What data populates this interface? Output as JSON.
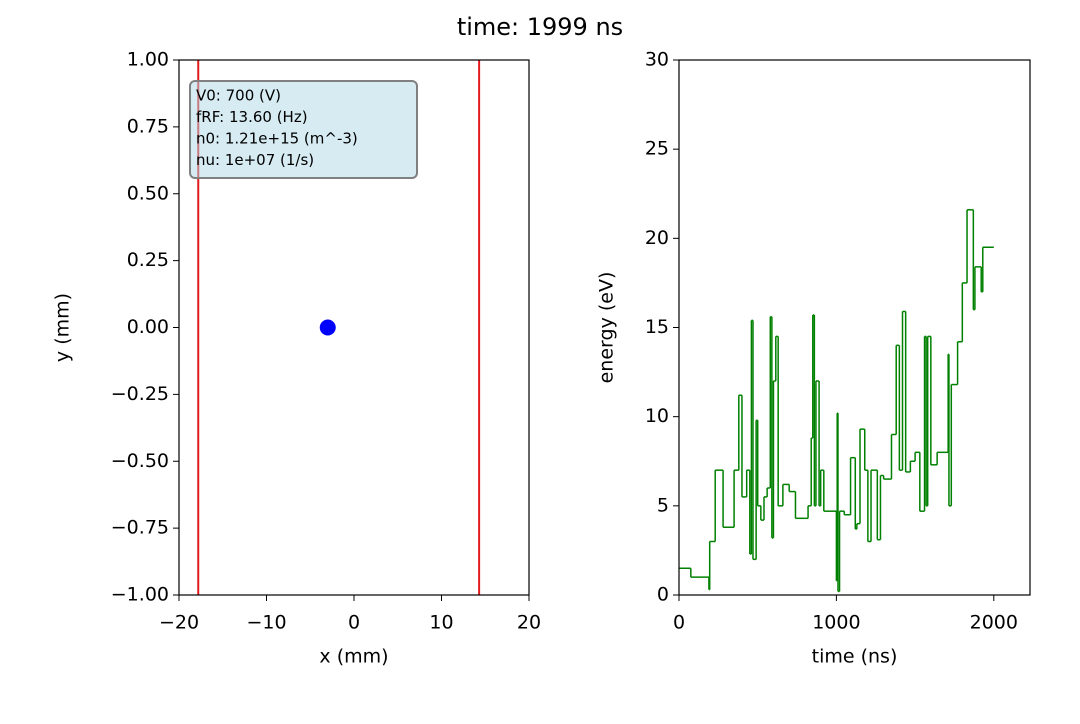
{
  "title": "time: 1999 ns",
  "chart_data": [
    {
      "type": "scatter",
      "x_label": "x (mm)",
      "y_label": "y (mm)",
      "x": [
        -3
      ],
      "y": [
        0
      ],
      "color": "#0000ff",
      "vlines": {
        "x": [
          -17.8,
          14.3
        ],
        "color": "#e31a1c"
      },
      "annotation": [
        "V0: 700 (V)",
        "fRF: 13.60 (Hz)",
        "n0: 1.21e+15 (m^-3)",
        "nu: 1e+07 (1/s)"
      ],
      "xlim": [
        -20,
        20
      ],
      "xticks": [
        {
          "value": -20,
          "label": "−20"
        },
        {
          "value": -10,
          "label": "−10"
        },
        0,
        10,
        20
      ],
      "ylim": [
        -1,
        1
      ],
      "yticks": [
        {
          "value": -1,
          "label": "−1.00"
        },
        {
          "value": -0.75,
          "label": "−0.75"
        },
        {
          "value": -0.5,
          "label": "−0.50"
        },
        {
          "value": -0.25,
          "label": "−0.25"
        },
        {
          "value": 0,
          "label": "0.00"
        },
        {
          "value": 0.25,
          "label": "0.25"
        },
        {
          "value": 0.5,
          "label": "0.50"
        },
        {
          "value": 0.75,
          "label": "0.75"
        },
        {
          "value": 1,
          "label": "1.00"
        }
      ]
    },
    {
      "type": "step",
      "x_label": "time (ns)",
      "y_label": "energy (eV)",
      "color": "#008000",
      "x": [
        0,
        75,
        190,
        195,
        230,
        280,
        350,
        380,
        400,
        430,
        450,
        460,
        470,
        490,
        500,
        520,
        540,
        560,
        580,
        590,
        600,
        615,
        630,
        660,
        700,
        740,
        800,
        820,
        840,
        850,
        860,
        870,
        890,
        900,
        920,
        1000,
        1005,
        1010,
        1020,
        1050,
        1090,
        1120,
        1130,
        1150,
        1180,
        1200,
        1220,
        1260,
        1280,
        1300,
        1350,
        1380,
        1400,
        1420,
        1440,
        1470,
        1500,
        1530,
        1560,
        1570,
        1580,
        1600,
        1640,
        1710,
        1715,
        1730,
        1770,
        1800,
        1830,
        1870,
        1880,
        1920,
        1930,
        2000
      ],
      "values": [
        1.5,
        1.0,
        0.3,
        3.0,
        7.0,
        3.8,
        7.0,
        11.2,
        5.5,
        7.0,
        2.3,
        15.4,
        2.0,
        9.8,
        5.0,
        4.2,
        5.5,
        6.0,
        15.6,
        3.2,
        12.0,
        14.5,
        5.0,
        6.2,
        5.8,
        4.3,
        4.3,
        5.0,
        8.8,
        15.7,
        5.0,
        12.0,
        5.0,
        7.0,
        4.7,
        0.8,
        10.2,
        0.2,
        4.7,
        4.5,
        7.7,
        3.7,
        4.0,
        9.3,
        7.0,
        3.0,
        7.0,
        3.1,
        6.7,
        6.5,
        9.0,
        14.0,
        7.0,
        15.9,
        6.9,
        7.5,
        8.0,
        4.7,
        14.5,
        5.0,
        14.5,
        7.3,
        8.0,
        13.5,
        5.0,
        11.8,
        14.2,
        17.5,
        21.6,
        16.0,
        18.4,
        17.0,
        19.5,
        19.5
      ],
      "xlim": [
        0,
        2230
      ],
      "xticks": [
        0,
        1000,
        2000
      ],
      "ylim": [
        0,
        30
      ],
      "yticks": [
        0,
        5,
        10,
        15,
        20,
        25,
        30
      ]
    }
  ]
}
